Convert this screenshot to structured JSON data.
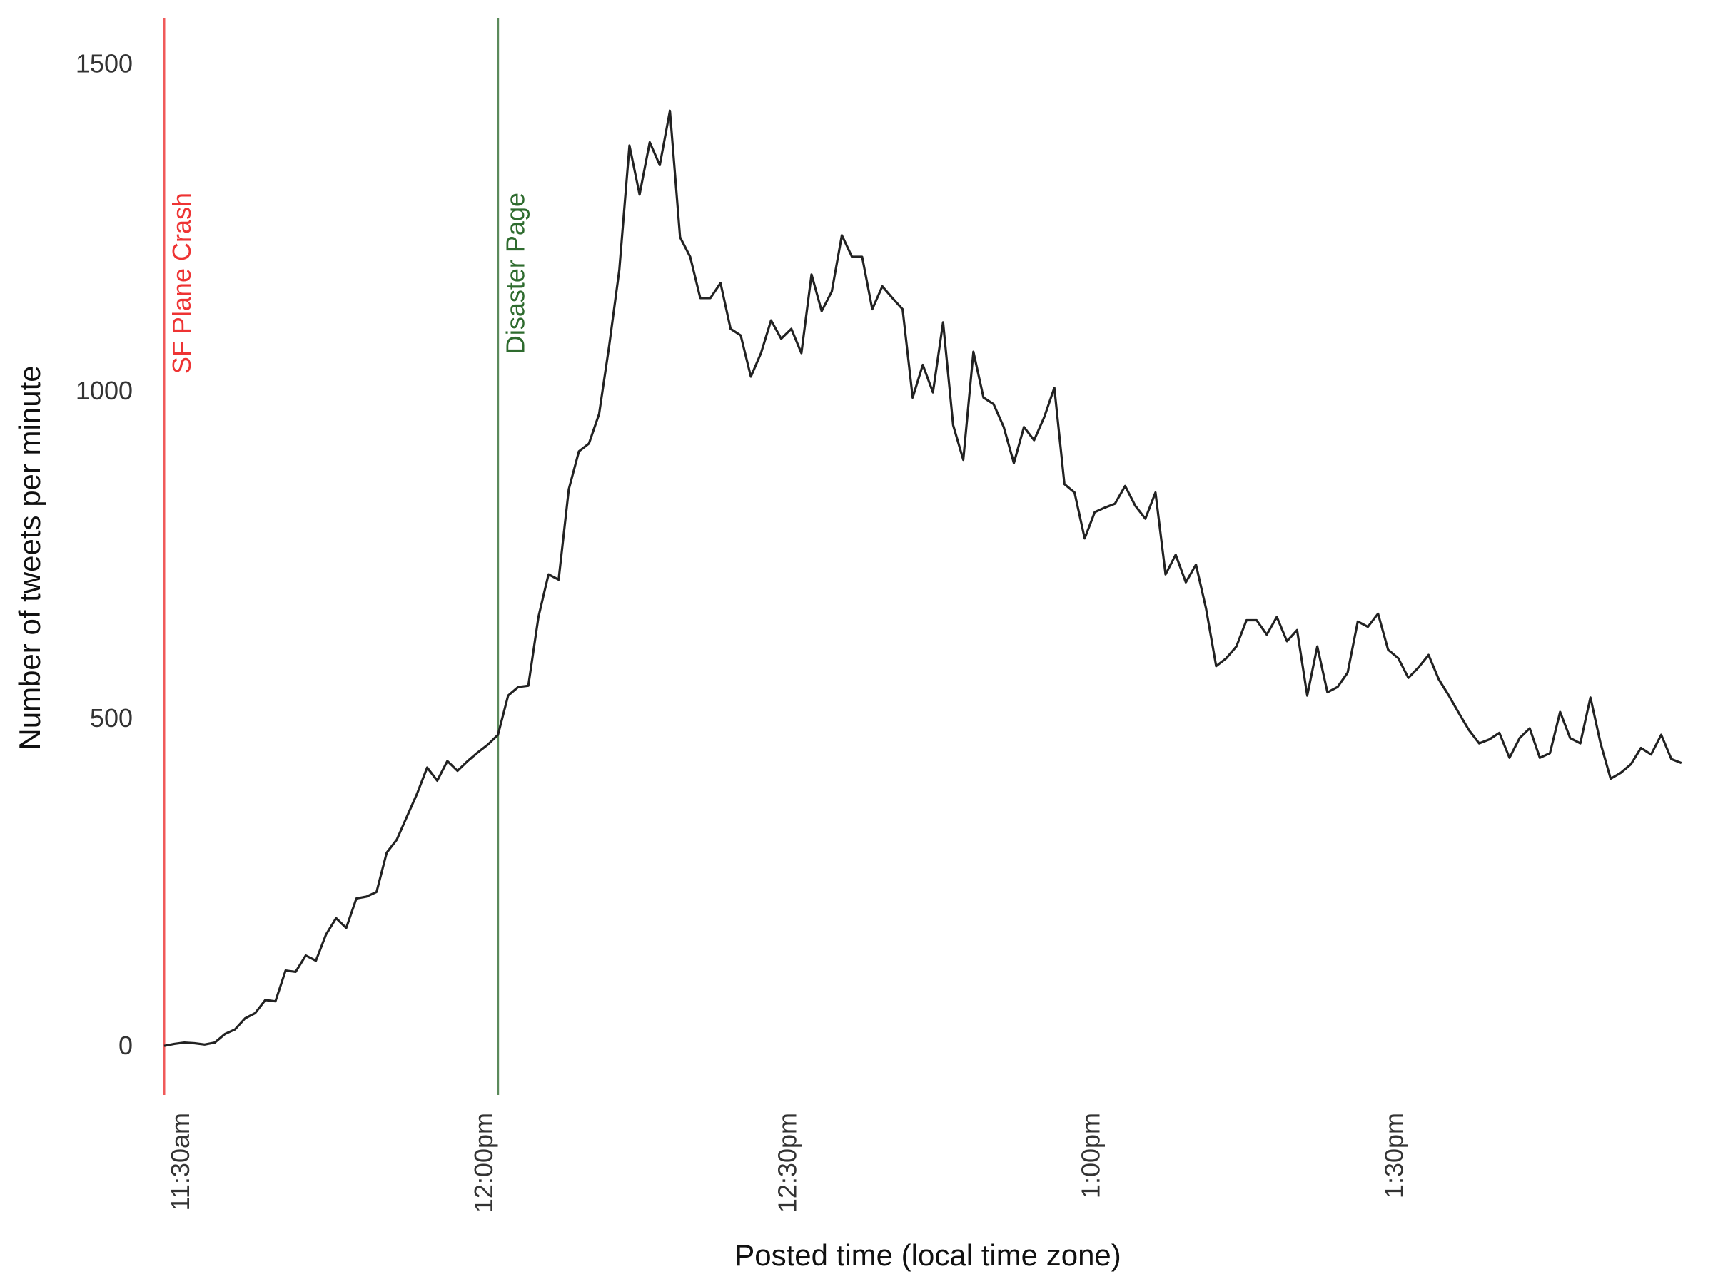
{
  "chart_data": {
    "type": "line",
    "title": "",
    "xlabel": "Posted time (local time zone)",
    "ylabel": "Number of tweets per minute",
    "x_unit": "minutes",
    "x_start_time": "11:30am",
    "xlim": [
      0,
      151
    ],
    "ylim": [
      -75,
      1570
    ],
    "grid": false,
    "x_ticks": [
      {
        "at": 0,
        "label": "11:30am"
      },
      {
        "at": 30,
        "label": "12:00pm"
      },
      {
        "at": 60,
        "label": "12:30pm"
      },
      {
        "at": 90,
        "label": "1:00pm"
      },
      {
        "at": 120,
        "label": "1:30pm"
      }
    ],
    "y_ticks": [
      0,
      500,
      1000,
      1500
    ],
    "annotations": [
      {
        "at": 0,
        "label": "SF Plane Crash",
        "color": "#f05a5a",
        "text_color": "#ee3333"
      },
      {
        "at": 33,
        "label": "Disaster Page",
        "color": "#5b8a5b",
        "text_color": "#2e6b2e"
      }
    ],
    "series": [
      {
        "color": "#222222",
        "x": [
          0,
          1,
          2,
          3,
          4,
          5,
          6,
          7,
          8,
          9,
          10,
          11,
          12,
          13,
          14,
          15,
          16,
          17,
          18,
          19,
          20,
          21,
          22,
          23,
          24,
          25,
          26,
          27,
          28,
          29,
          30,
          31,
          32,
          33,
          34,
          35,
          36,
          37,
          38,
          39,
          40,
          41,
          42,
          43,
          44,
          45,
          46,
          47,
          48,
          49,
          50,
          51,
          52,
          53,
          54,
          55,
          56,
          57,
          58,
          59,
          60,
          61,
          62,
          63,
          64,
          65,
          66,
          67,
          68,
          69,
          70,
          71,
          72,
          73,
          74,
          75,
          76,
          77,
          78,
          79,
          80,
          81,
          82,
          83,
          84,
          85,
          86,
          87,
          88,
          89,
          90,
          91,
          92,
          93,
          94,
          95,
          96,
          97,
          98,
          99,
          100,
          101,
          102,
          103,
          104,
          105,
          106,
          107,
          108,
          109,
          110,
          111,
          112,
          113,
          114,
          115,
          116,
          117,
          118,
          119,
          120,
          121,
          122,
          123,
          124,
          125,
          126,
          127,
          128,
          129,
          130,
          131,
          132,
          133,
          134,
          135,
          136,
          137,
          138,
          139,
          140,
          141,
          142,
          143,
          144,
          145,
          146,
          147,
          148,
          149,
          150
        ],
        "values": [
          0,
          3,
          5,
          4,
          2,
          5,
          18,
          25,
          42,
          50,
          70,
          68,
          115,
          113,
          138,
          130,
          170,
          195,
          180,
          225,
          228,
          235,
          295,
          315,
          350,
          385,
          425,
          405,
          435,
          420,
          435,
          448,
          460,
          475,
          535,
          548,
          550,
          655,
          720,
          712,
          850,
          908,
          920,
          965,
          1070,
          1185,
          1375,
          1300,
          1380,
          1345,
          1428,
          1235,
          1205,
          1142,
          1142,
          1165,
          1095,
          1085,
          1022,
          1058,
          1108,
          1080,
          1095,
          1058,
          1178,
          1122,
          1152,
          1238,
          1205,
          1205,
          1125,
          1160,
          1142,
          1125,
          990,
          1040,
          998,
          1105,
          948,
          895,
          1060,
          990,
          980,
          945,
          890,
          945,
          925,
          960,
          1005,
          858,
          845,
          775,
          815,
          822,
          828,
          855,
          825,
          805,
          845,
          720,
          750,
          708,
          735,
          668,
          580,
          592,
          610,
          650,
          650,
          628,
          655,
          618,
          635,
          535,
          610,
          540,
          548,
          570,
          648,
          640,
          660,
          605,
          592,
          562,
          578,
          597,
          560,
          535,
          508,
          482,
          462,
          468,
          478,
          440,
          470,
          485,
          440,
          447,
          510,
          470,
          462,
          532,
          462,
          408,
          417,
          430,
          455,
          445,
          475,
          438,
          432
        ]
      }
    ]
  }
}
